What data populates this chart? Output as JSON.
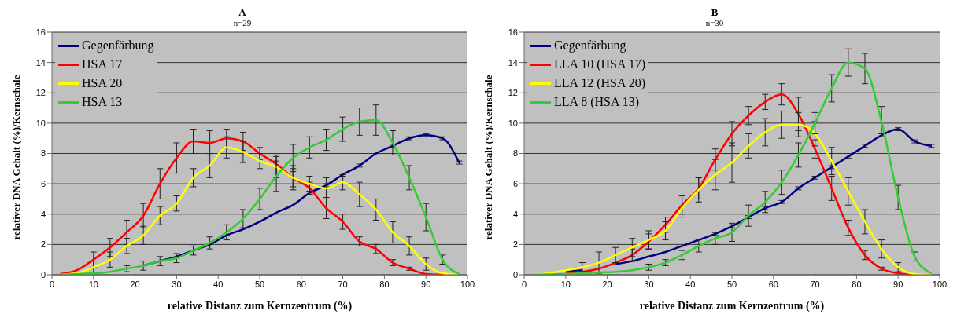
{
  "chart_data": [
    {
      "type": "line",
      "title": "A",
      "subtitle": "n=29",
      "xlabel": "relative Distanz zum Kernzentrum (%)",
      "ylabel": "relativer DNA Gehalt (%)/Kernschale",
      "x": [
        2,
        6,
        10,
        14,
        18,
        22,
        26,
        30,
        34,
        38,
        42,
        46,
        50,
        54,
        58,
        62,
        66,
        70,
        74,
        78,
        82,
        86,
        90,
        94,
        98
      ],
      "xlim": [
        0,
        100
      ],
      "xticks": [
        0,
        10,
        20,
        30,
        40,
        50,
        60,
        70,
        80,
        90,
        100
      ],
      "ylim": [
        0,
        16
      ],
      "yticks": [
        0,
        2,
        4,
        6,
        8,
        10,
        12,
        14,
        16
      ],
      "grid": "y",
      "legend": "top left",
      "marker": "none",
      "series": [
        {
          "name": "Gegenfärbung",
          "color": "#000080",
          "values": [
            null,
            null,
            null,
            null,
            null,
            0.6,
            0.9,
            1.2,
            1.6,
            2.0,
            2.6,
            3.0,
            3.5,
            4.1,
            4.6,
            5.4,
            5.9,
            6.6,
            7.2,
            8.0,
            8.5,
            9.0,
            9.2,
            9.0,
            7.4
          ],
          "errors": [
            null,
            null,
            null,
            null,
            null,
            null,
            null,
            null,
            null,
            null,
            null,
            null,
            null,
            null,
            null,
            0.1,
            0.1,
            0.1,
            0.1,
            0.1,
            0.1,
            0.1,
            0.1,
            0.1,
            0.1
          ]
        },
        {
          "name": "HSA 17",
          "color": "#ff0000",
          "values": [
            0.05,
            0.3,
            1.0,
            1.8,
            2.8,
            3.9,
            6.0,
            7.7,
            8.8,
            8.7,
            9.0,
            8.8,
            8.0,
            7.3,
            6.4,
            5.7,
            4.4,
            3.5,
            2.2,
            1.7,
            0.8,
            0.4,
            0.05,
            0,
            0
          ],
          "errors": [
            null,
            null,
            0.5,
            0.6,
            0.8,
            0.8,
            1.0,
            1.0,
            0.8,
            0.8,
            0.6,
            0.6,
            0.4,
            0.6,
            0.6,
            0.4,
            0.7,
            0.5,
            0.3,
            0.3,
            0.2,
            0.1,
            null,
            null,
            null
          ]
        },
        {
          "name": "HSA 20",
          "color": "#ffff00",
          "values": [
            0,
            0.1,
            0.5,
            1.0,
            1.9,
            2.6,
            3.9,
            4.7,
            6.4,
            7.2,
            8.4,
            8.1,
            7.5,
            7.1,
            6.4,
            6.0,
            5.7,
            6.1,
            5.3,
            4.3,
            2.8,
            1.9,
            0.7,
            0.1,
            0
          ],
          "errors": [
            null,
            null,
            0.4,
            0.5,
            0.5,
            0.6,
            0.6,
            0.5,
            0.6,
            0.8,
            0.7,
            0.7,
            0.5,
            0.7,
            0.8,
            0.5,
            0.7,
            0.5,
            0.8,
            0.7,
            0.7,
            0.6,
            0.4,
            null,
            null
          ]
        },
        {
          "name": "HSA 13",
          "color": "#33cc33",
          "values": [
            0,
            0.05,
            0.1,
            0.2,
            0.4,
            0.6,
            0.9,
            1.1,
            1.6,
            2.1,
            2.8,
            3.7,
            5.0,
            6.5,
            7.7,
            8.4,
            8.9,
            9.6,
            10.1,
            10.2,
            8.7,
            6.4,
            3.8,
            1.0,
            0.05
          ],
          "errors": [
            null,
            null,
            null,
            null,
            0.2,
            0.3,
            0.3,
            0.3,
            0.3,
            0.4,
            0.5,
            0.6,
            0.7,
            1.0,
            0.9,
            0.7,
            0.7,
            0.8,
            0.9,
            1.0,
            0.8,
            0.8,
            0.9,
            0.3,
            null
          ]
        }
      ]
    },
    {
      "type": "line",
      "title": "B",
      "subtitle": "n=30",
      "xlabel": "relative Distanz zum Kernzentrum (%)",
      "ylabel": "relativer DNA Gehalt (%)/Kernschale",
      "x": [
        2,
        6,
        10,
        14,
        18,
        22,
        26,
        30,
        34,
        38,
        42,
        46,
        50,
        54,
        58,
        62,
        66,
        70,
        74,
        78,
        82,
        86,
        90,
        94,
        98
      ],
      "xlim": [
        0,
        100
      ],
      "xticks": [
        0,
        10,
        20,
        30,
        40,
        50,
        60,
        70,
        80,
        90,
        100
      ],
      "ylim": [
        0,
        16
      ],
      "yticks": [
        0,
        2,
        4,
        6,
        8,
        10,
        12,
        14,
        16
      ],
      "grid": "y",
      "legend": "top left",
      "marker": "none",
      "series": [
        {
          "name": "Gegenfärbung",
          "color": "#000080",
          "values": [
            null,
            null,
            0.2,
            0.3,
            null,
            0.7,
            0.9,
            1.2,
            1.5,
            1.9,
            2.3,
            2.7,
            3.2,
            3.8,
            4.4,
            4.8,
            5.7,
            6.4,
            7.1,
            7.8,
            8.5,
            9.2,
            9.6,
            8.8,
            8.5
          ],
          "errors": [
            null,
            null,
            null,
            null,
            null,
            null,
            null,
            null,
            null,
            null,
            null,
            0.1,
            0.1,
            0.1,
            0.1,
            0.1,
            0.1,
            0.1,
            0.1,
            0.1,
            0.1,
            0.1,
            0.1,
            0.1,
            0.1
          ]
        },
        {
          "name": "LLA 10 (HSA 17)",
          "color": "#ff0000",
          "values": [
            null,
            null,
            0.15,
            0.2,
            0.4,
            0.8,
            1.3,
            2.2,
            3.3,
            4.6,
            5.7,
            7.6,
            9.3,
            10.5,
            11.4,
            11.9,
            10.6,
            8.3,
            5.7,
            3.1,
            1.3,
            0.4,
            0.1,
            0,
            0
          ],
          "errors": [
            null,
            null,
            null,
            null,
            null,
            null,
            0.4,
            0.5,
            0.5,
            0.6,
            0.7,
            0.7,
            0.8,
            0.6,
            0.5,
            0.7,
            1.1,
            0.6,
            0.8,
            0.5,
            0.3,
            0.1,
            null,
            null,
            null
          ]
        },
        {
          "name": "LLA 12 (HSA 20)",
          "color": "#ffff00",
          "values": [
            0,
            0.1,
            0.3,
            0.5,
            0.8,
            1.3,
            1.8,
            2.3,
            2.9,
            4.4,
            5.6,
            6.6,
            7.4,
            8.5,
            9.4,
            9.9,
            9.9,
            9.3,
            7.5,
            5.5,
            3.5,
            1.7,
            0.5,
            0.05,
            0
          ],
          "errors": [
            null,
            null,
            null,
            0.3,
            0.7,
            0.5,
            0.6,
            0.6,
            0.6,
            0.6,
            0.8,
            1.0,
            1.3,
            0.8,
            0.9,
            0.9,
            0.8,
            0.8,
            0.9,
            0.9,
            0.8,
            0.6,
            0.3,
            null,
            null
          ]
        },
        {
          "name": "LLA 8 (HSA 13)",
          "color": "#33cc33",
          "values": [
            0,
            0.02,
            0.05,
            0.1,
            0.15,
            0.2,
            0.3,
            0.5,
            0.8,
            1.3,
            1.9,
            2.4,
            2.8,
            3.9,
            4.8,
            6.1,
            7.9,
            10.0,
            12.3,
            14.0,
            13.6,
            10.1,
            5.1,
            1.2,
            0.1
          ],
          "errors": [
            null,
            null,
            null,
            null,
            null,
            null,
            null,
            0.2,
            0.2,
            0.3,
            0.4,
            0.4,
            0.6,
            0.7,
            0.7,
            0.8,
            0.8,
            0.7,
            0.9,
            0.9,
            1.0,
            1.0,
            0.8,
            0.3,
            null
          ]
        }
      ]
    }
  ]
}
